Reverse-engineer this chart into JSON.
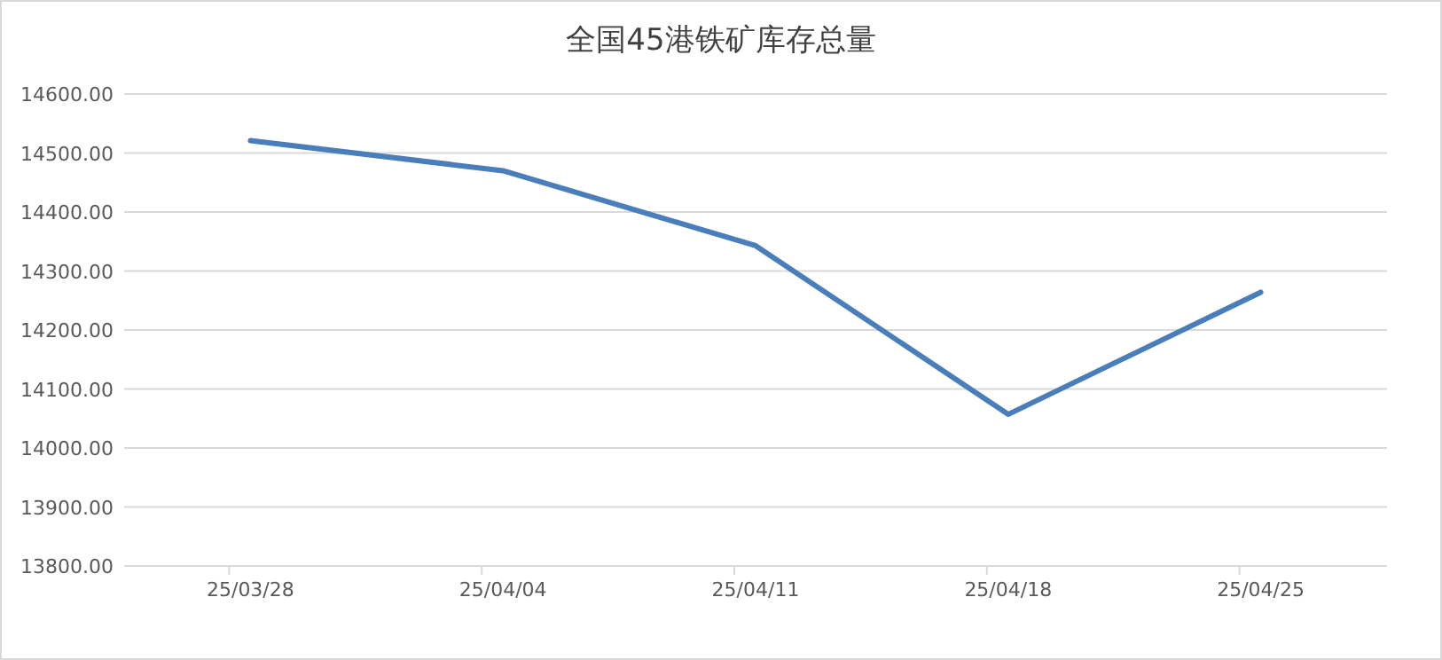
{
  "chart_data": {
    "type": "line",
    "title": "全国45港铁矿库存总量",
    "categories": [
      "25/03/28",
      "25/04/04",
      "25/04/11",
      "25/04/18",
      "25/04/25"
    ],
    "series": [
      {
        "color": "#4a7ebb",
        "values": [
          14521,
          14470,
          14343,
          14057,
          14264
        ]
      }
    ],
    "ylim": [
      13800,
      14600
    ],
    "yticks": [
      {
        "value": 13800,
        "label": "13800.00"
      },
      {
        "value": 13900,
        "label": "13900.00"
      },
      {
        "value": 14000,
        "label": "14000.00"
      },
      {
        "value": 14100,
        "label": "14100.00"
      },
      {
        "value": 14200,
        "label": "14200.00"
      },
      {
        "value": 14300,
        "label": "14300.00"
      },
      {
        "value": 14400,
        "label": "14400.00"
      },
      {
        "value": 14500,
        "label": "14500.00"
      },
      {
        "value": 14600,
        "label": "14600.00"
      }
    ],
    "grid": "y"
  }
}
